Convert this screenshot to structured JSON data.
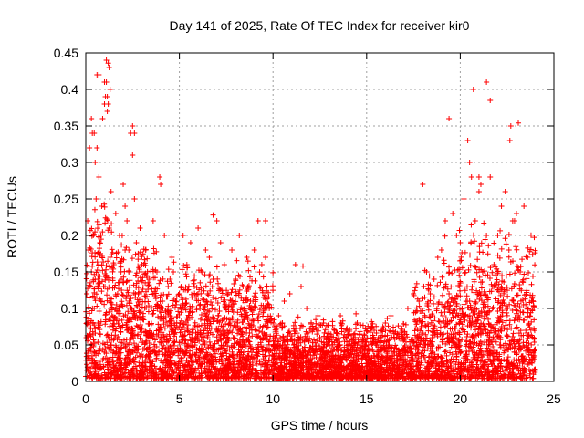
{
  "chart_data": {
    "type": "scatter",
    "title": "Day 141 of 2025, Rate Of TEC Index for receiver kir0",
    "xlabel": "GPS time / hours",
    "ylabel": "ROTI / TECUs",
    "xlim": [
      0,
      25
    ],
    "ylim": [
      0,
      0.45
    ],
    "x_ticks": [
      0,
      5,
      10,
      15,
      20,
      25
    ],
    "x_tick_labels": [
      "0",
      "5",
      "10",
      "15",
      "20",
      "25"
    ],
    "y_ticks": [
      0,
      0.05,
      0.1,
      0.15,
      0.2,
      0.25,
      0.3,
      0.35,
      0.4,
      0.45
    ],
    "y_tick_labels": [
      "0",
      "0.05",
      "0.1",
      "0.15",
      "0.2",
      "0.25",
      "0.3",
      "0.35",
      "0.4",
      "0.45"
    ],
    "grid": true,
    "marker": "plus",
    "color": "#ff0000",
    "x_data_range": [
      0,
      24
    ],
    "series": [
      {
        "values_note_free": true,
        "x": [
          0.05,
          0.1,
          0.15,
          0.2,
          0.25,
          0.3,
          0.35,
          0.4,
          0.45,
          0.5,
          0.55,
          0.6,
          0.65,
          0.7,
          0.75,
          0.8,
          0.85,
          0.9,
          0.95,
          1.0,
          1.05,
          1.1,
          1.15,
          1.2,
          1.25,
          1.3,
          1.35,
          1.4,
          1.5,
          1.6,
          1.7,
          1.8,
          1.9,
          2.0,
          2.1,
          2.2,
          2.3,
          2.4,
          2.5,
          2.6,
          2.7,
          2.8,
          2.9,
          3.0,
          3.2,
          3.4,
          3.6,
          3.8,
          4.0,
          4.2,
          4.4,
          4.6,
          4.8,
          5.0,
          5.2,
          5.4,
          5.6,
          5.8,
          6.0,
          6.2,
          6.4,
          6.6,
          6.8,
          7.0,
          7.2,
          7.4,
          7.6,
          7.8,
          8.0,
          8.2,
          8.4,
          8.6,
          8.8,
          9.0,
          9.2,
          9.4,
          9.6,
          9.8,
          10.0,
          10.3,
          10.6,
          10.9,
          11.2,
          11.5,
          11.8,
          12.1,
          12.4,
          12.7,
          13.0,
          13.3,
          13.6,
          13.9,
          14.2,
          14.5,
          14.8,
          15.1,
          15.4,
          15.7,
          16.0,
          16.3,
          16.6,
          16.9,
          17.2,
          17.5,
          17.8,
          18.0,
          18.2,
          18.4,
          18.6,
          18.8,
          19.0,
          19.2,
          19.4,
          19.6,
          19.8,
          20.0,
          20.2,
          20.4,
          20.6,
          20.8,
          21.0,
          21.2,
          21.4,
          21.6,
          21.8,
          22.0,
          22.2,
          22.4,
          22.6,
          22.8,
          23.0,
          23.2,
          23.4,
          23.6,
          23.8,
          1.2,
          1.1,
          1.25,
          0.7,
          0.6,
          1.15,
          2.5,
          2.6,
          3.95,
          0.3,
          19.4,
          20.7,
          21.1,
          21.4,
          21.6,
          22.65,
          22.7,
          23.1,
          9.6,
          11.6,
          6.8,
          21.0,
          20.5,
          22.9,
          0.45,
          1.3,
          1.0,
          2.1,
          3.1,
          4.1,
          5.1,
          6.1,
          7.1,
          8.1,
          9.1,
          10.1,
          11.1,
          12.1,
          13.1,
          14.1,
          15.1,
          16.1,
          17.1,
          18.1,
          19.1,
          20.1,
          21.1,
          22.1,
          23.1,
          0.8,
          2.3,
          4.5,
          6.5,
          8.5,
          10.5,
          12.5,
          14.5,
          16.5,
          18.5,
          20.5,
          22.5,
          23.5
        ],
        "y": [
          0.12,
          0.22,
          0.18,
          0.32,
          0.08,
          0.15,
          0.34,
          0.2,
          0.1,
          0.3,
          0.25,
          0.42,
          0.14,
          0.28,
          0.19,
          0.11,
          0.24,
          0.36,
          0.13,
          0.41,
          0.39,
          0.44,
          0.37,
          0.38,
          0.21,
          0.17,
          0.26,
          0.09,
          0.16,
          0.23,
          0.12,
          0.2,
          0.14,
          0.27,
          0.18,
          0.22,
          0.15,
          0.34,
          0.31,
          0.25,
          0.19,
          0.12,
          0.21,
          0.16,
          0.18,
          0.14,
          0.22,
          0.15,
          0.27,
          0.2,
          0.13,
          0.17,
          0.11,
          0.12,
          0.2,
          0.16,
          0.19,
          0.13,
          0.21,
          0.15,
          0.18,
          0.17,
          0.14,
          0.22,
          0.19,
          0.16,
          0.12,
          0.18,
          0.14,
          0.2,
          0.13,
          0.17,
          0.11,
          0.18,
          0.22,
          0.16,
          0.17,
          0.1,
          0.08,
          0.09,
          0.11,
          0.12,
          0.16,
          0.13,
          0.1,
          0.07,
          0.09,
          0.08,
          0.06,
          0.07,
          0.09,
          0.06,
          0.05,
          0.08,
          0.06,
          0.05,
          0.07,
          0.06,
          0.08,
          0.09,
          0.06,
          0.07,
          0.1,
          0.12,
          0.11,
          0.27,
          0.15,
          0.12,
          0.14,
          0.17,
          0.18,
          0.22,
          0.12,
          0.23,
          0.2,
          0.19,
          0.25,
          0.33,
          0.28,
          0.22,
          0.26,
          0.15,
          0.2,
          0.28,
          0.16,
          0.2,
          0.24,
          0.26,
          0.18,
          0.22,
          0.23,
          0.15,
          0.24,
          0.17,
          0.11,
          0.436,
          0.41,
          0.43,
          0.42,
          0.32,
          0.39,
          0.35,
          0.34,
          0.28,
          0.36,
          0.36,
          0.4,
          0.27,
          0.41,
          0.385,
          0.33,
          0.35,
          0.354,
          0.22,
          0.158,
          0.228,
          0.28,
          0.3,
          0.22,
          0.34,
          0.4,
          0.38,
          0.24,
          0.16,
          0.11,
          0.13,
          0.1,
          0.09,
          0.08,
          0.07,
          0.06,
          0.05,
          0.045,
          0.04,
          0.035,
          0.03,
          0.03,
          0.04,
          0.05,
          0.08,
          0.1,
          0.12,
          0.1,
          0.09,
          0.2,
          0.18,
          0.14,
          0.12,
          0.1,
          0.08,
          0.06,
          0.05,
          0.04,
          0.09,
          0.11,
          0.1,
          0.07
        ]
      }
    ]
  }
}
